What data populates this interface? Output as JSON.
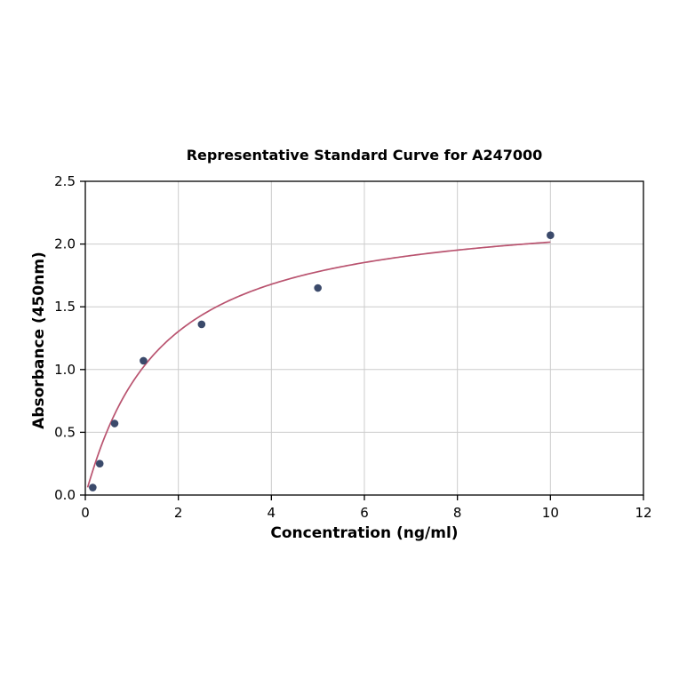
{
  "chart_data": {
    "type": "scatter",
    "title": "Representative Standard Curve for A247000",
    "xlabel": "Concentration (ng/ml)",
    "ylabel": "Absorbance (450nm)",
    "xlim": [
      0,
      12
    ],
    "ylim": [
      0,
      2.5
    ],
    "xticks": [
      0,
      2,
      4,
      6,
      8,
      10,
      12
    ],
    "xtick_labels": [
      "0",
      "2",
      "4",
      "6",
      "8",
      "10",
      "12"
    ],
    "yticks": [
      0.0,
      0.5,
      1.0,
      1.5,
      2.0,
      2.5
    ],
    "ytick_labels": [
      "0.0",
      "0.5",
      "1.0",
      "1.5",
      "2.0",
      "2.5"
    ],
    "grid": true,
    "legend": "none",
    "points": {
      "x": [
        0.16,
        0.31,
        0.63,
        1.25,
        2.5,
        5.0,
        10.0
      ],
      "y": [
        0.06,
        0.25,
        0.57,
        1.07,
        1.36,
        1.65,
        2.07
      ]
    },
    "fit_curve": {
      "model": "4PL",
      "params": {
        "min": 0.0,
        "max": 2.3,
        "ec50": 1.55,
        "hill": 1.05
      },
      "x_range": [
        0.05,
        10.0
      ]
    },
    "colors": {
      "points": "#3b4a6b",
      "curve": "#b9536f",
      "grid": "#cccccc",
      "axis": "#000000",
      "background": "#ffffff"
    }
  }
}
